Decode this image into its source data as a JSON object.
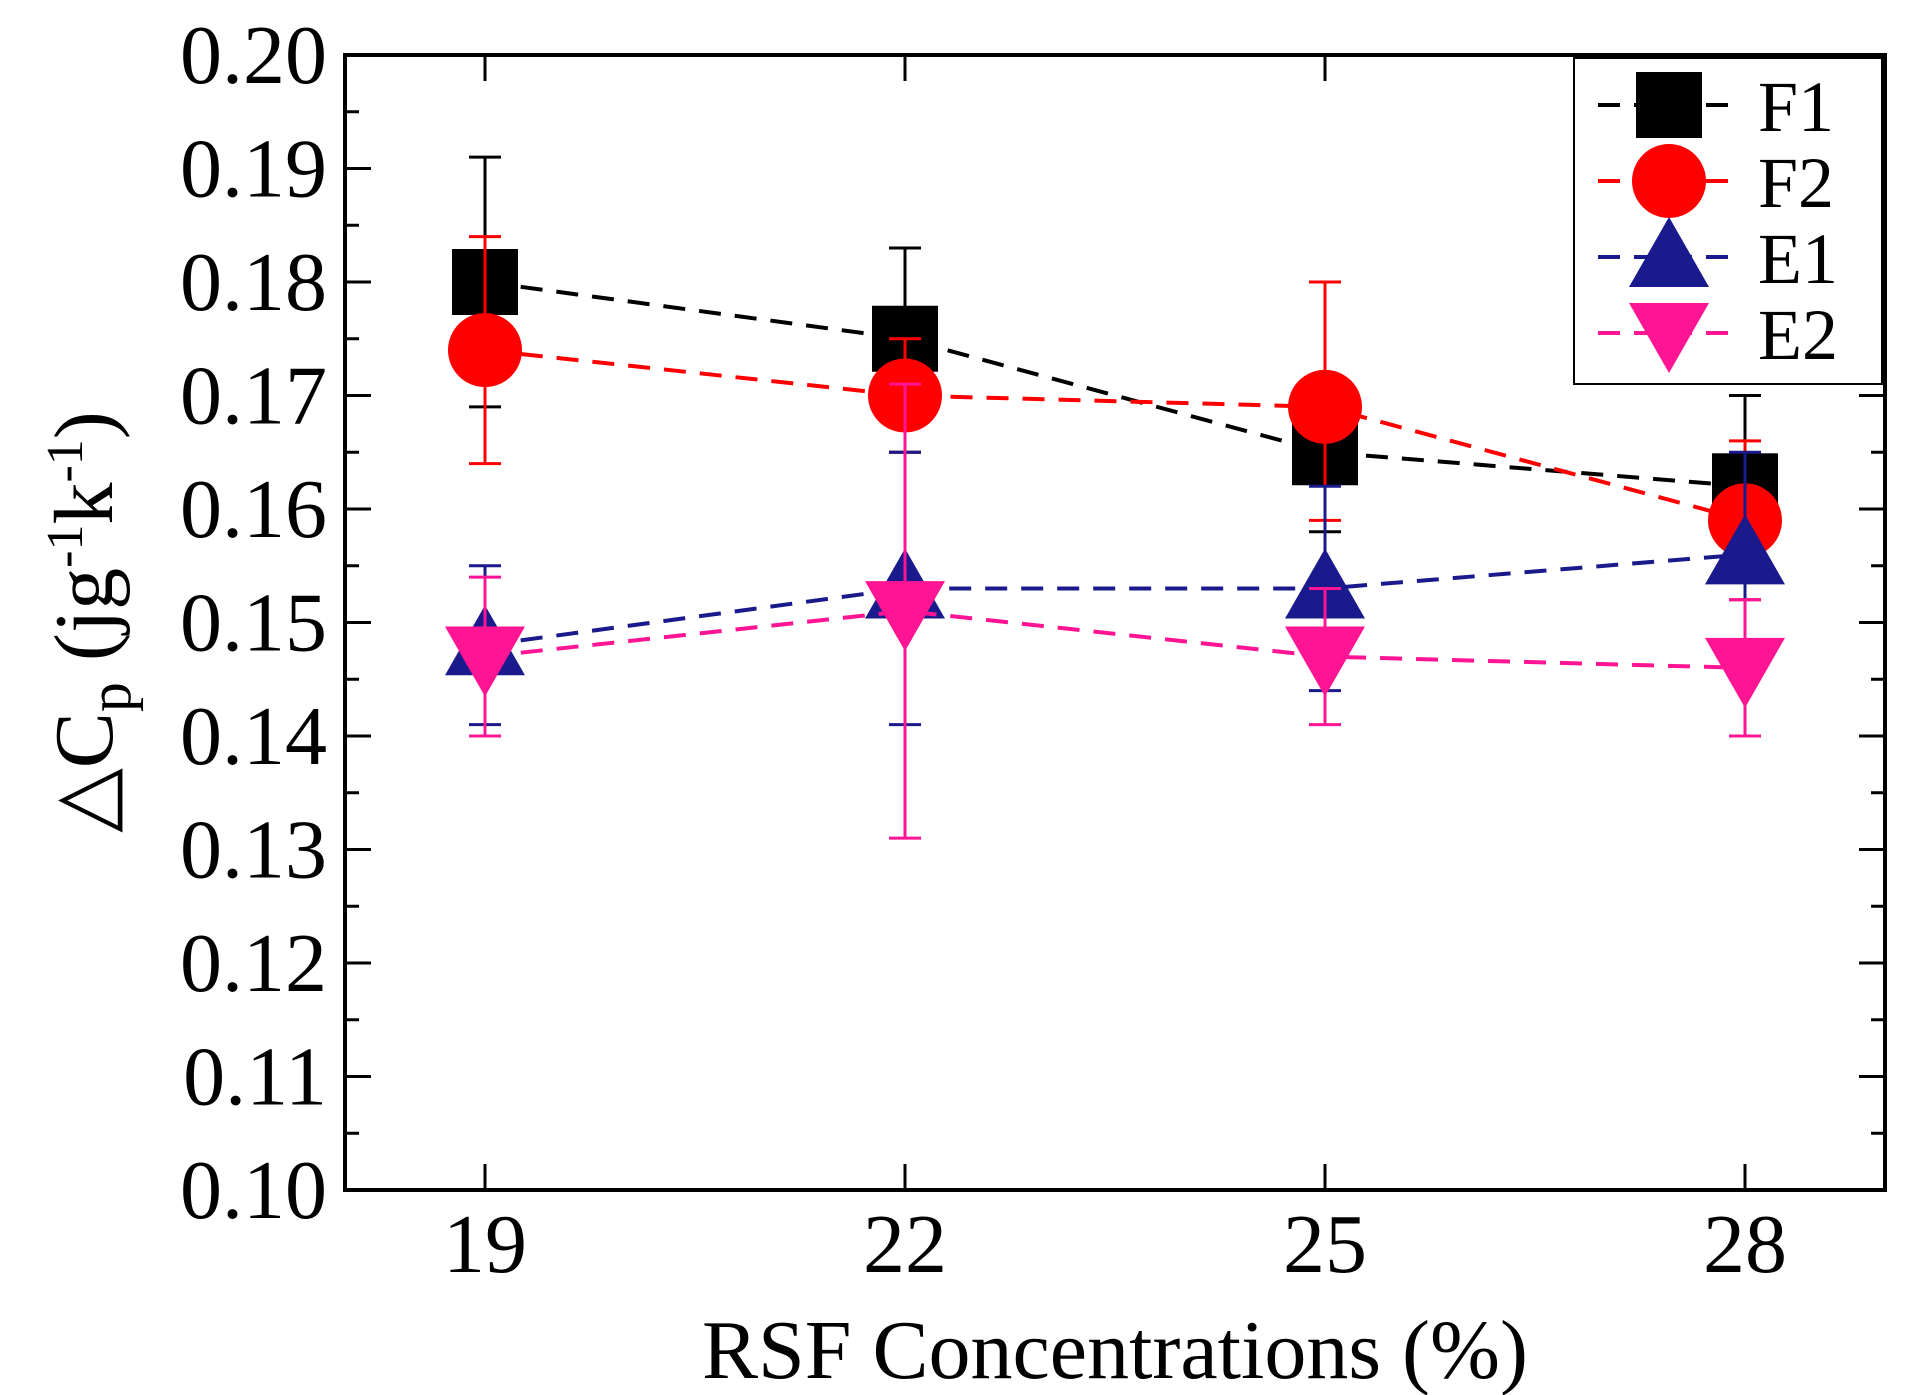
{
  "chart_data": {
    "type": "line",
    "title": "",
    "xlabel": "RSF Concentrations (%)",
    "ylabel": {
      "prefix": "△C",
      "sub": "p",
      "open": " (jg",
      "sup1": "-1",
      "mid": "k",
      "sup2": "-1",
      "close": ")"
    },
    "x": [
      19,
      22,
      25,
      28
    ],
    "xlim": [
      18,
      29
    ],
    "ylim": [
      0.1,
      0.2
    ],
    "x_ticks": [
      "19",
      "22",
      "25",
      "28"
    ],
    "y_ticks": [
      "0.10",
      "0.11",
      "0.12",
      "0.13",
      "0.14",
      "0.15",
      "0.16",
      "0.17",
      "0.18",
      "0.19",
      "0.20"
    ],
    "grid": false,
    "legend_position": "top-right",
    "series": [
      {
        "name": "F1",
        "color": "#000000",
        "marker": "square",
        "values": [
          0.18,
          0.175,
          0.165,
          0.162
        ],
        "err_low": [
          0.169,
          0.165,
          0.158,
          0.154
        ],
        "err_high": [
          0.191,
          0.183,
          0.171,
          0.17
        ]
      },
      {
        "name": "F2",
        "color": "#ff0000",
        "marker": "circle",
        "values": [
          0.174,
          0.17,
          0.169,
          0.159
        ],
        "err_low": [
          0.164,
          0.165,
          0.159,
          0.152
        ],
        "err_high": [
          0.184,
          0.175,
          0.18,
          0.166
        ]
      },
      {
        "name": "E1",
        "color": "#1a1a8c",
        "marker": "triangle-up",
        "values": [
          0.148,
          0.153,
          0.153,
          0.156
        ],
        "err_low": [
          0.141,
          0.141,
          0.144,
          0.147
        ],
        "err_high": [
          0.155,
          0.165,
          0.162,
          0.165
        ]
      },
      {
        "name": "E2",
        "color": "#ff1493",
        "marker": "triangle-down",
        "values": [
          0.147,
          0.151,
          0.147,
          0.146
        ],
        "err_low": [
          0.14,
          0.131,
          0.141,
          0.14
        ],
        "err_high": [
          0.154,
          0.171,
          0.153,
          0.152
        ]
      }
    ]
  }
}
